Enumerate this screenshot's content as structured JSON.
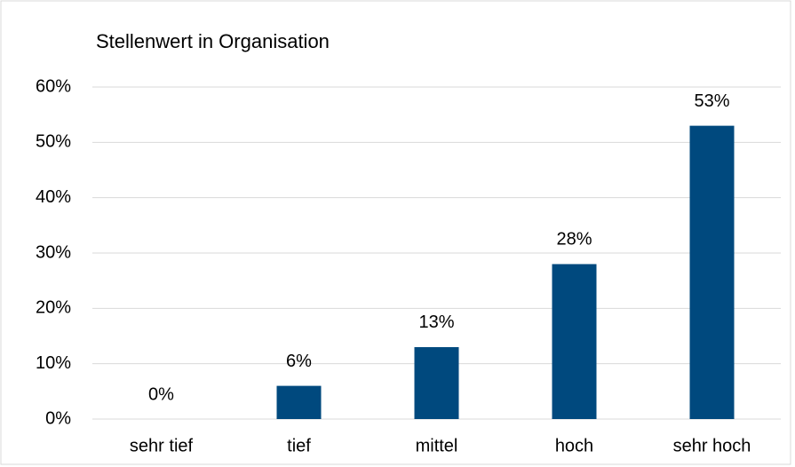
{
  "chart_data": {
    "type": "bar",
    "title": "Stellenwert in Organisation",
    "categories": [
      "sehr tief",
      "tief",
      "mittel",
      "hoch",
      "sehr hoch"
    ],
    "values": [
      0,
      6,
      13,
      28,
      53
    ],
    "value_labels": [
      "0%",
      "6%",
      "13%",
      "28%",
      "53%"
    ],
    "color": "#00497e",
    "ylim": [
      0,
      60
    ],
    "yticks": [
      {
        "value": 0,
        "label": "0%"
      },
      {
        "value": 10,
        "label": "10%"
      },
      {
        "value": 20,
        "label": "20%"
      },
      {
        "value": 30,
        "label": "30%"
      },
      {
        "value": 40,
        "label": "40%"
      },
      {
        "value": 50,
        "label": "50%"
      },
      {
        "value": 60,
        "label": "60%"
      }
    ],
    "grid": true
  }
}
